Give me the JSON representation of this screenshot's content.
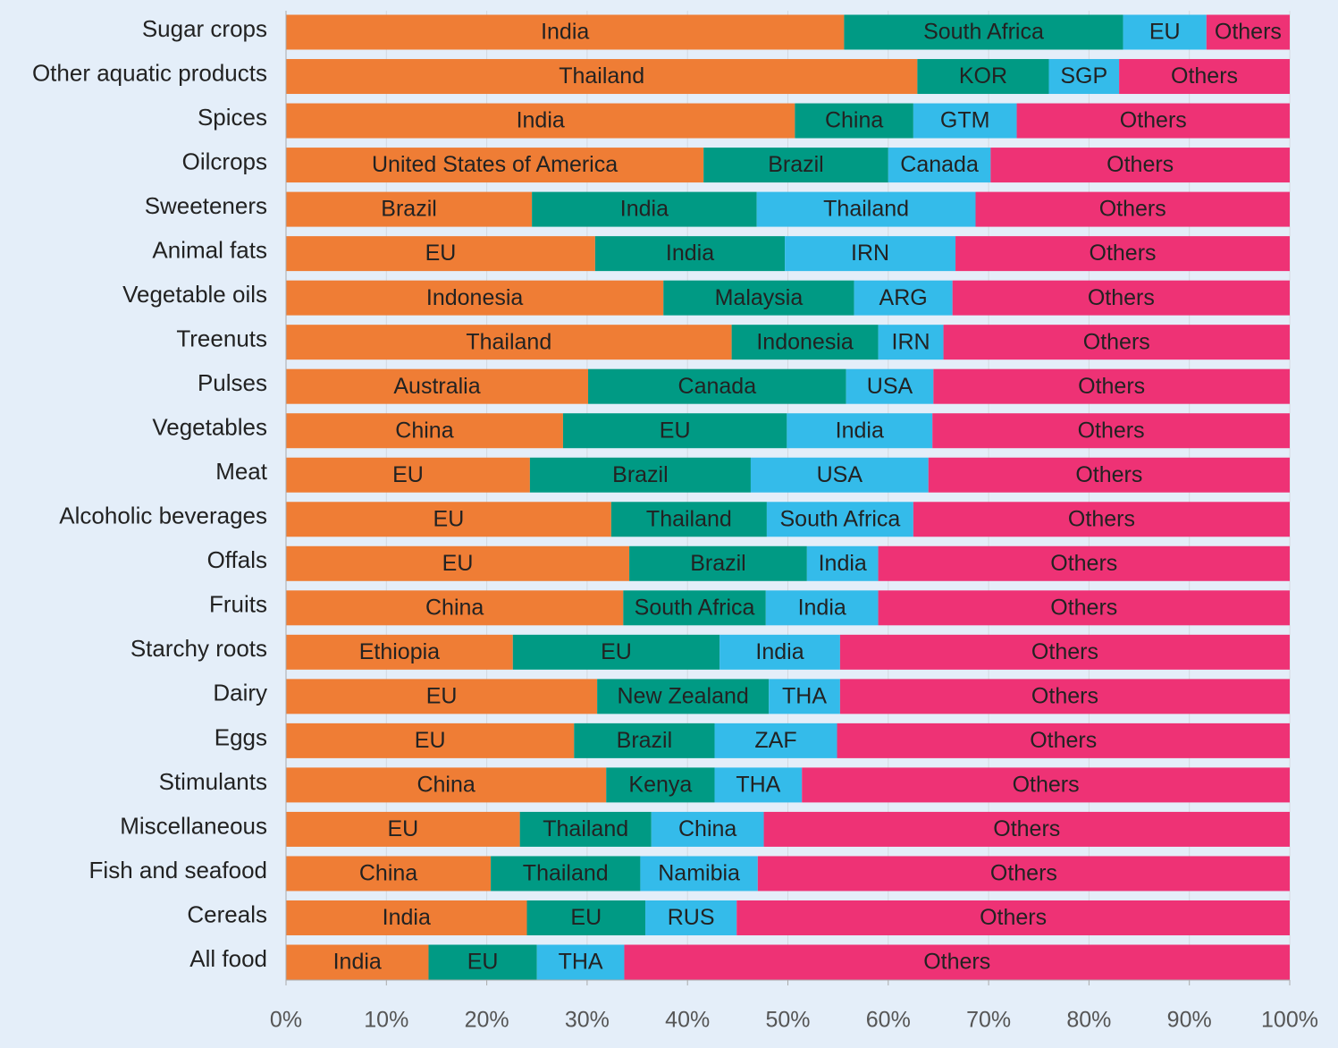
{
  "chart_data": {
    "type": "stacked-bar",
    "orientation": "horizontal",
    "categories": [
      "Sugar crops",
      "Other aquatic products",
      "Spices",
      "Oilcrops",
      "Sweeteners",
      "Animal fats",
      "Vegetable oils",
      "Treenuts",
      "Pulses",
      "Vegetables",
      "Meat",
      "Alcoholic beverages",
      "Offals",
      "Fruits",
      "Starchy roots",
      "Dairy",
      "Eggs",
      "Stimulants",
      "Miscellaneous",
      "Fish and seafood",
      "Cereals",
      "All food"
    ],
    "series": [
      {
        "color": "#ef7d35",
        "values": [
          55.6,
          62.9,
          50.7,
          41.6,
          24.5,
          30.8,
          37.6,
          44.4,
          30.1,
          27.6,
          24.3,
          32.4,
          34.2,
          33.6,
          22.6,
          31.0,
          28.7,
          31.9,
          23.3,
          20.4,
          24.0,
          14.2
        ],
        "labels": [
          "India",
          "Thailand",
          "India",
          "United States of America",
          "Brazil",
          "EU",
          "Indonesia",
          "Thailand",
          "Australia",
          "China",
          "EU",
          "EU",
          "EU",
          "China",
          "Ethiopia",
          "EU",
          "EU",
          "China",
          "EU",
          "China",
          "India",
          "India"
        ]
      },
      {
        "color": "#009a84",
        "values": [
          27.8,
          13.1,
          11.8,
          18.4,
          22.4,
          18.9,
          19.0,
          14.6,
          25.7,
          22.3,
          22.0,
          15.5,
          17.7,
          14.2,
          20.6,
          17.1,
          14.0,
          10.8,
          13.1,
          14.9,
          11.8,
          10.8
        ],
        "labels": [
          "South Africa",
          "KOR",
          "China",
          "Brazil",
          "India",
          "India",
          "Malaysia",
          "Indonesia",
          "Canada",
          "EU",
          "Brazil",
          "Thailand",
          "Brazil",
          "South Africa",
          "EU",
          "New Zealand",
          "Brazil",
          "Kenya",
          "Thailand",
          "Thailand",
          "EU",
          "EU"
        ]
      },
      {
        "color": "#34bbea",
        "values": [
          8.3,
          7.0,
          10.3,
          10.2,
          21.8,
          17.0,
          9.8,
          6.5,
          8.7,
          14.5,
          17.7,
          14.6,
          7.1,
          11.2,
          12.0,
          7.1,
          12.2,
          8.7,
          11.2,
          11.7,
          9.1,
          8.7
        ],
        "labels": [
          "EU",
          "SGP",
          "GTM",
          "Canada",
          "Thailand",
          "IRN",
          "ARG",
          "IRN",
          "USA",
          "India",
          "USA",
          "South Africa",
          "India",
          "India",
          "India",
          "THA",
          "ZAF",
          "THA",
          "China",
          "Namibia",
          "RUS",
          "THA"
        ]
      },
      {
        "color": "#ee3275",
        "values": [
          8.3,
          17.0,
          27.2,
          29.8,
          31.3,
          33.3,
          33.6,
          34.5,
          35.5,
          35.6,
          36.0,
          37.5,
          41.0,
          41.0,
          44.8,
          44.8,
          45.1,
          48.6,
          52.4,
          53.0,
          55.1,
          66.3
        ],
        "labels": [
          "Others",
          "Others",
          "Others",
          "Others",
          "Others",
          "Others",
          "Others",
          "Others",
          "Others",
          "Others",
          "Others",
          "Others",
          "Others",
          "Others",
          "Others",
          "Others",
          "Others",
          "Others",
          "Others",
          "Others",
          "Others",
          "Others"
        ]
      }
    ],
    "xlim": [
      0,
      100
    ],
    "xticks": [
      {
        "value": 0,
        "label": "0%"
      },
      {
        "value": 10,
        "label": "10%"
      },
      {
        "value": 20,
        "label": "20%"
      },
      {
        "value": 30,
        "label": "30%"
      },
      {
        "value": 40,
        "label": "40%"
      },
      {
        "value": 50,
        "label": "50%"
      },
      {
        "value": 60,
        "label": "60%"
      },
      {
        "value": 70,
        "label": "70%"
      },
      {
        "value": 80,
        "label": "80%"
      },
      {
        "value": 90,
        "label": "90%"
      },
      {
        "value": 100,
        "label": "100%"
      }
    ],
    "grid": true
  }
}
